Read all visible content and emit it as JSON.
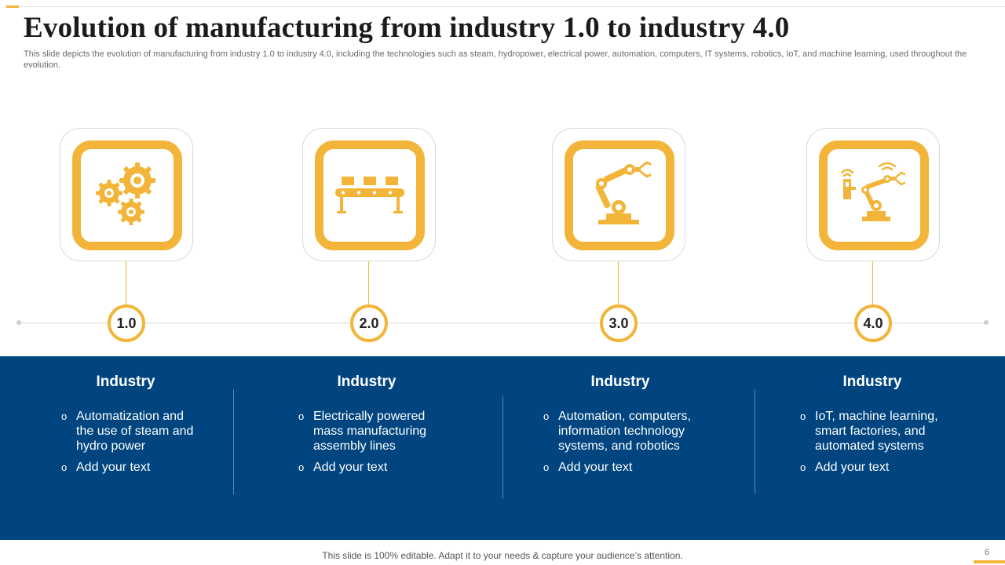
{
  "title": "Evolution of manufacturing from industry 1.0 to industry 4.0",
  "subtitle": "This slide depicts the evolution of manufacturing from industry 1.0 to industry 4.0, including the technologies such as steam, hydropower, electrical power, automation, computers, IT systems, robotics, IoT, and machine learning, used throughout the evolution.",
  "colors": {
    "accent": "#f2b53a",
    "band": "#00457f",
    "text": "#1b1b1b"
  },
  "stages": [
    {
      "icon": "gears-icon",
      "badge": "1.0",
      "heading": "Industry",
      "bullets": [
        "Automatization and the use of steam and hydro power",
        "Add your text"
      ]
    },
    {
      "icon": "conveyor-belt-icon",
      "badge": "2.0",
      "heading": "Industry",
      "bullets": [
        "Electrically powered mass manufacturing assembly lines",
        "Add your text"
      ]
    },
    {
      "icon": "robotic-arm-icon",
      "badge": "3.0",
      "heading": "Industry",
      "bullets": [
        "Automation, computers, information technology systems, and robotics",
        "Add your text"
      ]
    },
    {
      "icon": "iot-robot-icon",
      "badge": "4.0",
      "heading": "Industry",
      "bullets": [
        "IoT, machine learning, smart factories, and automated systems",
        "Add your text"
      ]
    }
  ],
  "bullet_symbol": "o",
  "footer": "This slide is 100% editable. Adapt it to your needs & capture your audience’s attention.",
  "page_number": "6"
}
